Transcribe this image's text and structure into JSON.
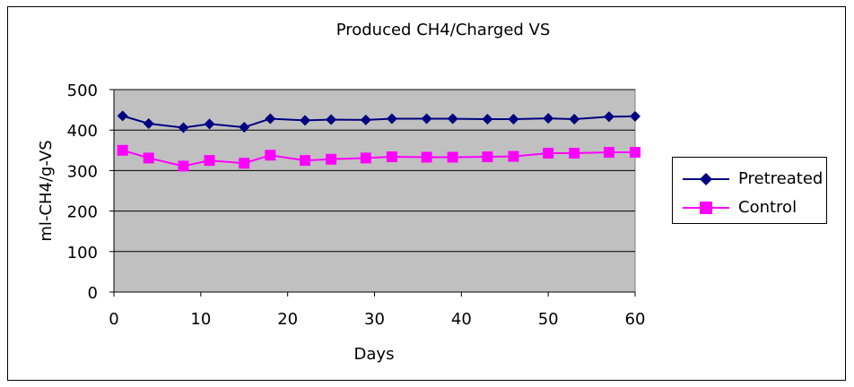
{
  "chart_data": {
    "type": "line",
    "title": "Produced CH4/Charged VS",
    "xlabel": "Days",
    "ylabel": "ml-CH4/g-VS",
    "xlim": [
      0,
      60
    ],
    "ylim": [
      0,
      500
    ],
    "x_ticks": [
      0,
      10,
      20,
      30,
      40,
      50,
      60
    ],
    "y_ticks": [
      0,
      100,
      200,
      300,
      400,
      500
    ],
    "grid": true,
    "legend_position": "right",
    "plot_background": "#c0c0c0",
    "series": [
      {
        "name": "Pretreated",
        "color": "#000080",
        "marker": "diamond",
        "x": [
          1,
          4,
          8,
          11,
          15,
          18,
          22,
          25,
          29,
          32,
          36,
          39,
          43,
          46,
          50,
          53,
          57,
          60
        ],
        "y": [
          435,
          416,
          406,
          415,
          407,
          428,
          424,
          426,
          425,
          428,
          428,
          428,
          427,
          427,
          429,
          427,
          433,
          434
        ]
      },
      {
        "name": "Control",
        "color": "#ff00ff",
        "marker": "square",
        "x": [
          1,
          4,
          8,
          11,
          15,
          18,
          22,
          25,
          29,
          32,
          36,
          39,
          43,
          46,
          50,
          53,
          57,
          60
        ],
        "y": [
          350,
          331,
          311,
          325,
          318,
          338,
          325,
          328,
          331,
          334,
          333,
          333,
          334,
          335,
          343,
          343,
          345,
          345
        ]
      }
    ]
  }
}
